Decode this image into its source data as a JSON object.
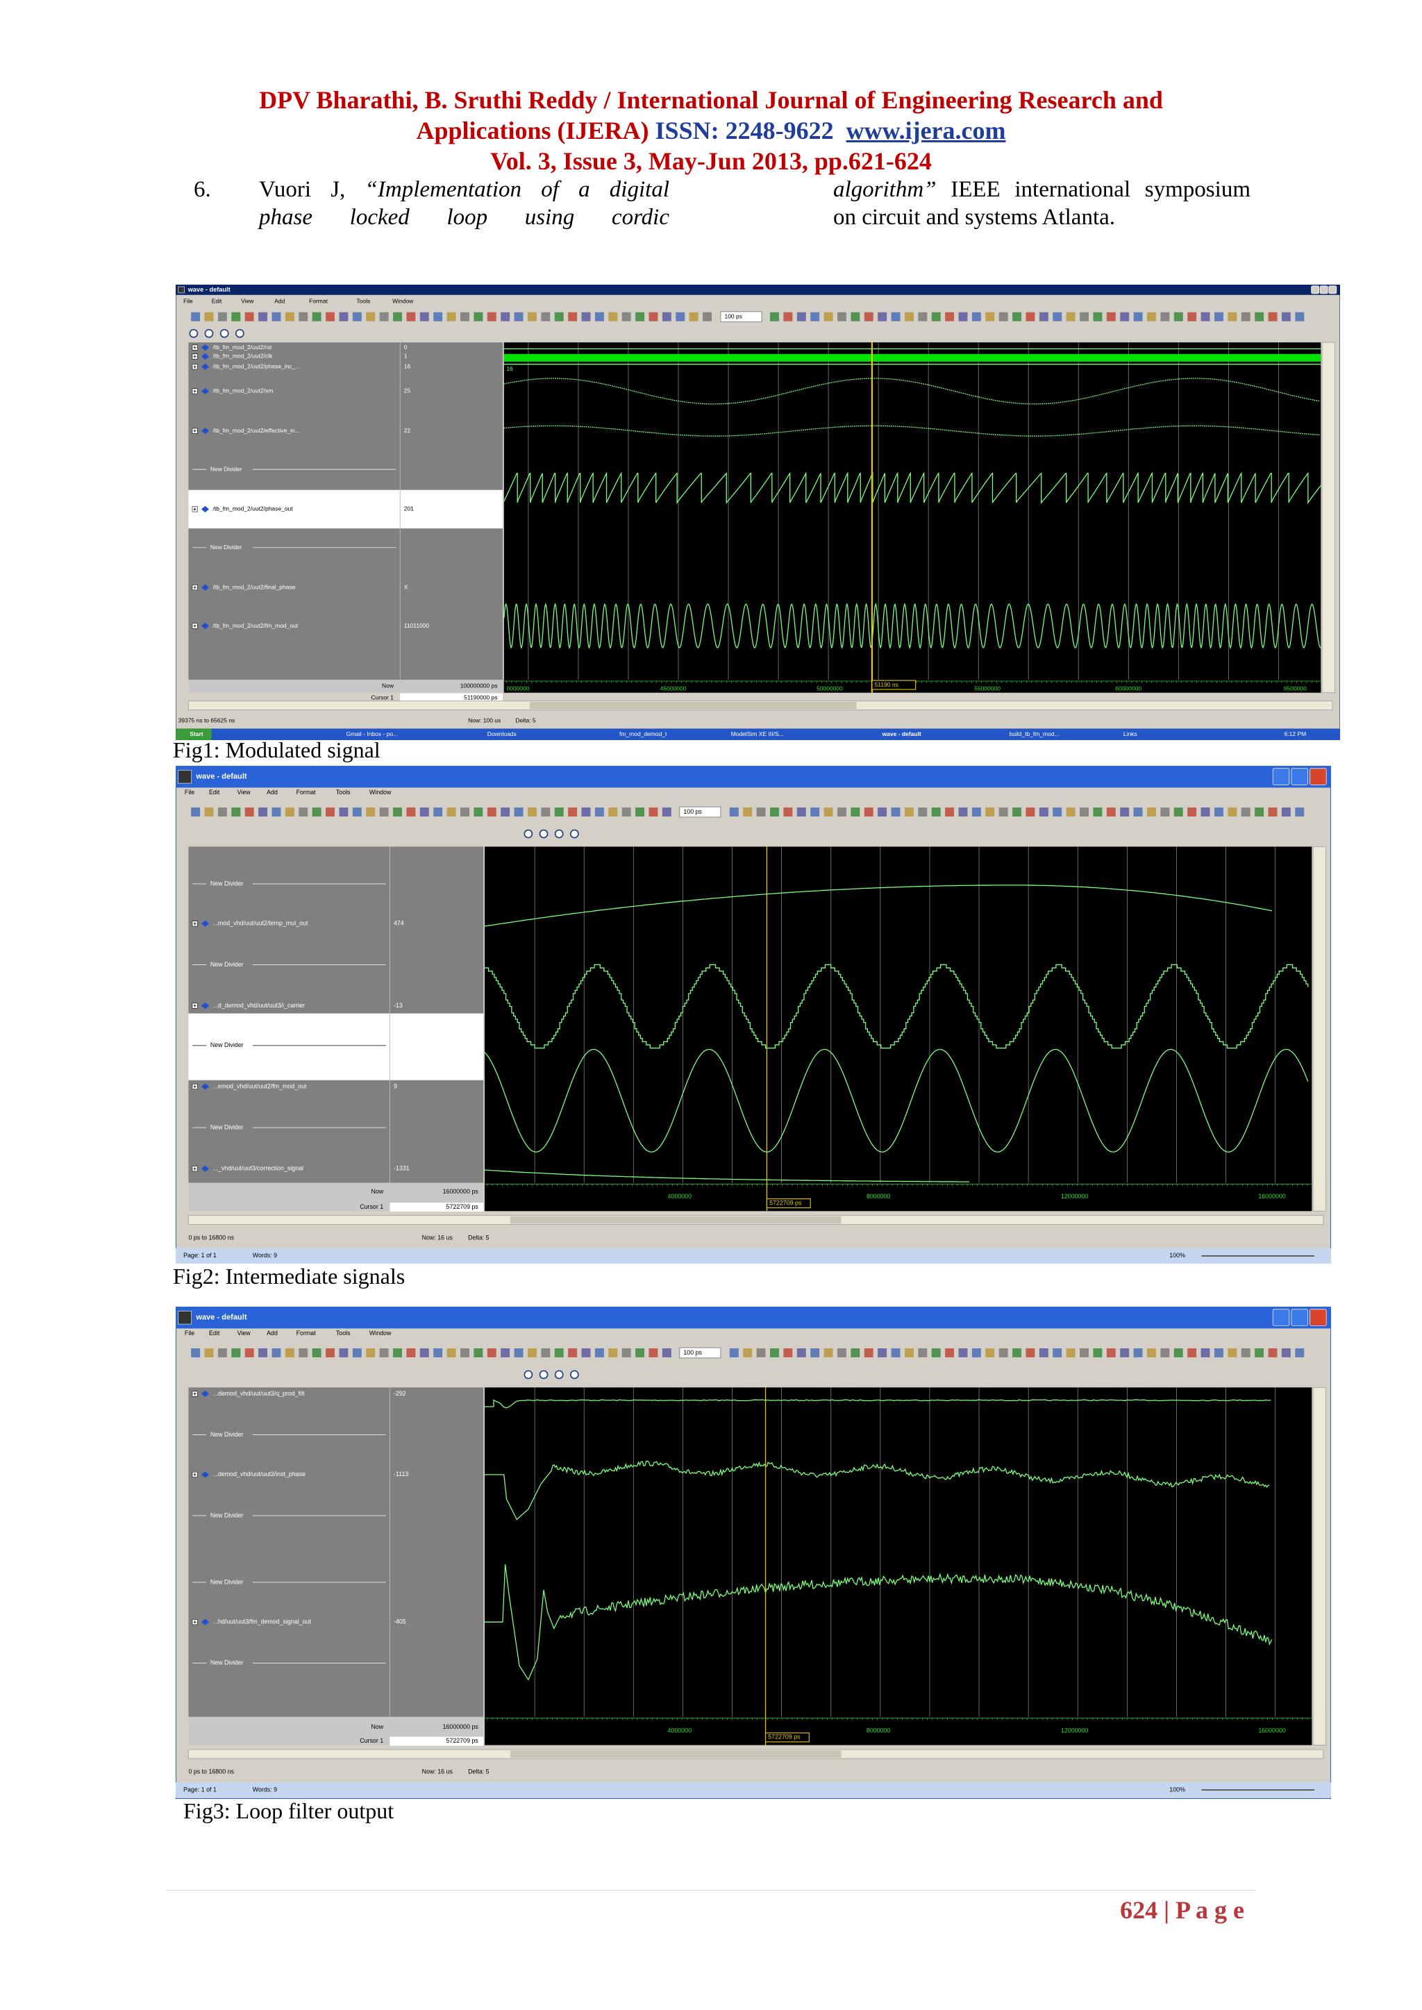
{
  "header": {
    "line1": "DPV Bharathi, B. Sruthi Reddy / International Journal of Engineering Research and",
    "line2": "Applications (IJERA)",
    "issn": "ISSN: 2248-9622",
    "url": "www.ijera.com",
    "line3": "Vol. 3, Issue 3, May-Jun 2013, pp.621-624"
  },
  "reference": {
    "number": "6.",
    "author": "Vuori J,",
    "title_l1": "“Implementation of a digital",
    "title_l2": "phase locked loop using cordic",
    "title_l3": "algorithm”",
    "rest_l1": "IEEE international symposium",
    "rest_l2": "on circuit and systems Atlanta."
  },
  "figures": [
    {
      "window_title": "wave - default",
      "menu": [
        "File",
        "Edit",
        "View",
        "Add",
        "Format",
        "Tools",
        "Window"
      ],
      "zoom_step": "100 ps",
      "signals": [
        {
          "name": "/tb_fm_mod_2/uut2/rst",
          "value": "0"
        },
        {
          "name": "/tb_fm_mod_2/uut2/clk",
          "value": "1"
        },
        {
          "name": "/tb_fm_mod_2/uut2/phase_inc_...",
          "value": "16"
        },
        {
          "name": "/tb_fm_mod_2/uut2/xm",
          "value": "25"
        },
        {
          "name": "/tb_fm_mod_2/uut2/effective_in...",
          "value": "22"
        },
        {
          "name": "New Divider"
        },
        {
          "name": "/tb_fm_mod_2/uut2/phase_out",
          "value": "201"
        },
        {
          "name": "New Divider"
        },
        {
          "name": "/tb_fm_mod_2/uut2/final_phase",
          "value": "X"
        },
        {
          "name": "/tb_fm_mod_2/uut2/fm_mod_out",
          "value": "11011000"
        }
      ],
      "bus_value": "16",
      "now_label": "Now",
      "now": "100000000 ps",
      "cursor_label": "Cursor 1",
      "cursor": "51190000 ps",
      "cursor_tag": "51190 ns",
      "time_labels": [
        "0000000",
        "45000000",
        "50000000",
        "55000000",
        "60000000",
        "6500000"
      ],
      "status_range": "39375 ns to 65625 ns",
      "status_now": "Now: 100 us",
      "status_delta": "Delta: 5",
      "taskbar": [
        "Start",
        "Gmail - Inbox - po...",
        "Downloads",
        "fm_mod_demod_t",
        "ModelSim XE III/S...",
        "wave - default",
        "build_tb_fm_mod...",
        "Links",
        "6:12 PM"
      ],
      "caption": "Fig1: Modulated signal"
    },
    {
      "window_title": "wave - default",
      "menu": [
        "File",
        "Edit",
        "View",
        "Add",
        "Format",
        "Tools",
        "Window"
      ],
      "zoom_step": "100 ps",
      "signals": [
        {
          "name": "New Divider"
        },
        {
          "name": "...mod_vhd/uut/uut2/temp_mul_out",
          "value": "474"
        },
        {
          "name": "New Divider"
        },
        {
          "name": "...d_demod_vhd/uut/uut3/i_carrier",
          "value": "-13"
        },
        {
          "name": "New Divider"
        },
        {
          "name": "...emod_vhd/uut/uut2/fm_mod_out",
          "value": "9"
        },
        {
          "name": "New Divider"
        },
        {
          "name": "..._vhd/uut/uut3/correction_signal",
          "value": "-1331"
        }
      ],
      "now_label": "Now",
      "now": "16000000 ps",
      "cursor_label": "Cursor 1",
      "cursor": "5722709 ps",
      "cursor_tag": "5722709 ps",
      "time_labels": [
        "4000000",
        "8000000",
        "12000000",
        "16000000"
      ],
      "status_range": "0 ps to 16800 ns",
      "status_now": "Now: 16 us",
      "status_delta": "Delta: 5",
      "wordbar": [
        "Page: 1 of 1",
        "Words: 9",
        "100%"
      ],
      "caption": "Fig2: Intermediate signals"
    },
    {
      "window_title": "wave - default",
      "menu": [
        "File",
        "Edit",
        "View",
        "Add",
        "Format",
        "Tools",
        "Window"
      ],
      "zoom_step": "100 ps",
      "signals": [
        {
          "name": "...demod_vhd/uut/uut3/q_prod_filt",
          "value": "-292"
        },
        {
          "name": "New Divider"
        },
        {
          "name": "...demod_vhd/uut/uut3/inst_phase",
          "value": "-1113"
        },
        {
          "name": "New Divider"
        },
        {
          "name": "New Divider"
        },
        {
          "name": "...hd/uut/uut3/fm_demod_signal_out",
          "value": "-405"
        },
        {
          "name": "New Divider"
        }
      ],
      "now_label": "Now",
      "now": "16000000 ps",
      "cursor_label": "Cursor 1",
      "cursor": "5722709 ps",
      "cursor_tag": "5722709 ps",
      "time_labels": [
        "4000000",
        "8000000",
        "12000000",
        "16000000"
      ],
      "status_range": "0 ps to 16800 ns",
      "status_now": "Now: 16 us",
      "status_delta": "Delta: 5",
      "wordbar": [
        "Page: 1 of 1",
        "Words: 9",
        "100%"
      ],
      "caption": "Fig3: Loop filter output"
    }
  ],
  "footer": {
    "page": "624 | P a g e"
  }
}
